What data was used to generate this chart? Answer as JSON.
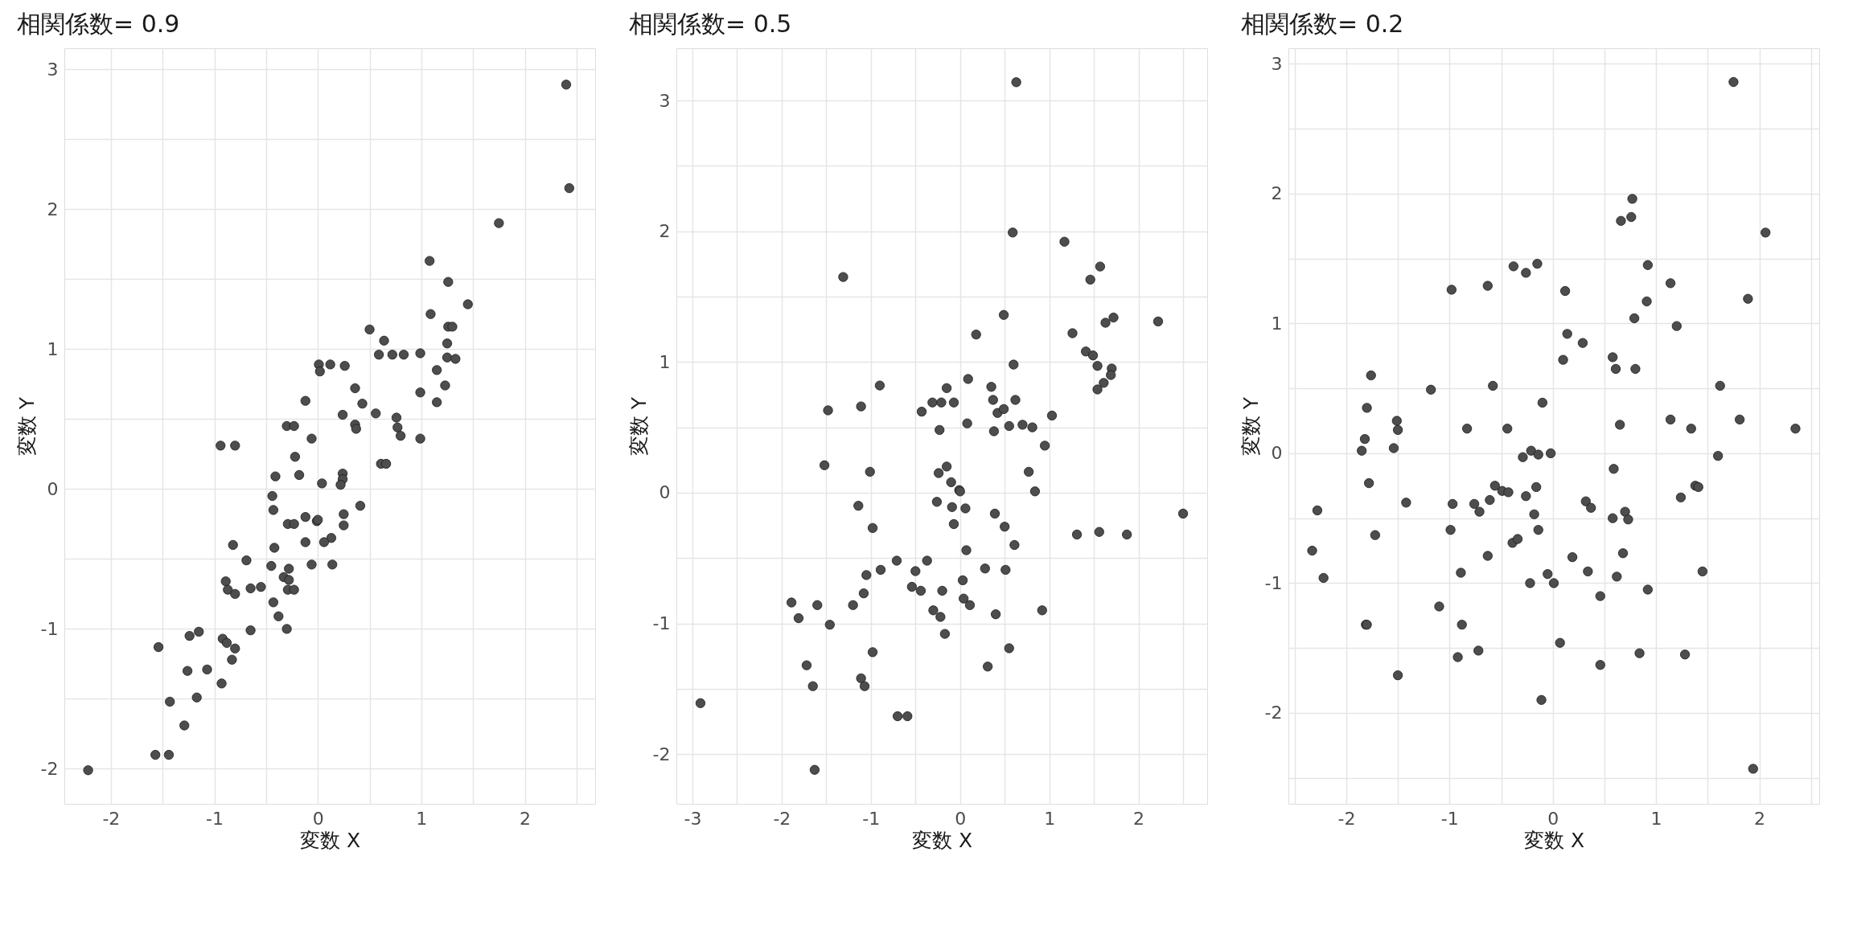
{
  "chart_data": [
    {
      "type": "scatter",
      "title": "相関係数= 0.9",
      "xlabel": "変数 X",
      "ylabel": "変数 Y",
      "color": "#4d4d4d",
      "marker": "circle",
      "grid": true,
      "xlim": [
        -2.45,
        2.68
      ],
      "ylim": [
        -2.25,
        3.15
      ],
      "xticks": [
        -2,
        {
          "value": -1.5,
          "label": null
        },
        -1,
        {
          "value": -0.5,
          "label": null
        },
        0,
        {
          "value": 0.5,
          "label": null
        },
        1,
        {
          "value": 1.5,
          "label": null
        },
        2,
        {
          "value": 2.5,
          "label": null
        }
      ],
      "yticks": [
        -2,
        {
          "value": -1.5,
          "label": null
        },
        -1,
        {
          "value": -0.5,
          "label": null
        },
        0,
        {
          "value": 0.5,
          "label": null
        },
        1,
        {
          "value": 1.5,
          "label": null
        },
        2,
        {
          "value": 2.5,
          "label": null
        },
        3
      ],
      "x": [
        2.4,
        2.43,
        1.75,
        1.08,
        1.26,
        1.45,
        1.09,
        1.26,
        1.3,
        0.5,
        0.64,
        1.25,
        0.59,
        0.72,
        0.83,
        0.99,
        1.25,
        1.33,
        0.01,
        0.12,
        0.26,
        0.02,
        1.15,
        0.36,
        1.23,
        0.99,
        -0.12,
        0.43,
        1.15,
        0.24,
        0.56,
        0.76,
        -0.3,
        -0.23,
        0.36,
        0.37,
        0.77,
        0.8,
        0.99,
        -0.06,
        -0.94,
        -0.8,
        -0.22,
        -0.41,
        -0.18,
        0.04,
        0.24,
        0.24,
        0.22,
        0.61,
        0.66,
        -0.44,
        0.41,
        -0.43,
        0.25,
        -0.12,
        -0.01,
        0.0,
        -0.29,
        -0.23,
        0.25,
        0.13,
        -0.12,
        0.06,
        -0.82,
        -0.42,
        -0.69,
        -0.45,
        -0.06,
        0.14,
        -0.28,
        -0.89,
        -0.33,
        -0.28,
        -0.87,
        -0.8,
        -0.65,
        -0.55,
        -0.29,
        -0.23,
        -0.43,
        -0.38,
        -0.65,
        -0.3,
        -1.24,
        -1.15,
        -1.54,
        -0.92,
        -0.88,
        -0.8,
        -0.83,
        -1.26,
        -1.07,
        -0.93,
        -1.43,
        -1.17,
        -1.29,
        -1.57,
        -1.44,
        -2.22
      ],
      "values": [
        2.89,
        2.15,
        1.9,
        1.63,
        1.48,
        1.32,
        1.25,
        1.16,
        1.16,
        1.14,
        1.06,
        1.04,
        0.96,
        0.96,
        0.96,
        0.97,
        0.94,
        0.93,
        0.89,
        0.89,
        0.88,
        0.84,
        0.85,
        0.72,
        0.74,
        0.69,
        0.63,
        0.61,
        0.62,
        0.53,
        0.54,
        0.51,
        0.45,
        0.45,
        0.46,
        0.43,
        0.44,
        0.38,
        0.36,
        0.36,
        0.31,
        0.31,
        0.23,
        0.09,
        0.1,
        0.04,
        0.11,
        0.07,
        0.03,
        0.18,
        0.18,
        -0.05,
        -0.12,
        -0.15,
        -0.18,
        -0.2,
        -0.23,
        -0.22,
        -0.25,
        -0.25,
        -0.26,
        -0.35,
        -0.38,
        -0.38,
        -0.4,
        -0.42,
        -0.51,
        -0.55,
        -0.54,
        -0.54,
        -0.57,
        -0.66,
        -0.63,
        -0.65,
        -0.72,
        -0.75,
        -0.71,
        -0.7,
        -0.72,
        -0.72,
        -0.81,
        -0.91,
        -1.01,
        -1.0,
        -1.05,
        -1.02,
        -1.13,
        -1.07,
        -1.1,
        -1.14,
        -1.22,
        -1.3,
        -1.29,
        -1.39,
        -1.52,
        -1.49,
        -1.69,
        -1.9,
        -1.9,
        -2.01
      ]
    },
    {
      "type": "scatter",
      "title": "相関係数= 0.5",
      "xlabel": "変数 X",
      "ylabel": "変数 Y",
      "color": "#4d4d4d",
      "marker": "circle",
      "grid": true,
      "xlim": [
        -3.18,
        2.77
      ],
      "ylim": [
        -2.38,
        3.4
      ],
      "xticks": [
        -3,
        {
          "value": -2.5,
          "label": null
        },
        -2,
        {
          "value": -1.5,
          "label": null
        },
        -1,
        {
          "value": -0.5,
          "label": null
        },
        0,
        {
          "value": 0.5,
          "label": null
        },
        1,
        {
          "value": 1.5,
          "label": null
        },
        2,
        {
          "value": 2.5,
          "label": null
        }
      ],
      "yticks": [
        -2,
        {
          "value": -1.5,
          "label": null
        },
        -1,
        {
          "value": -0.5,
          "label": null
        },
        0,
        {
          "value": 0.5,
          "label": null
        },
        1,
        {
          "value": 1.5,
          "label": null
        },
        2,
        {
          "value": 2.5,
          "label": null
        },
        3
      ],
      "x": [
        0.63,
        -1.31,
        0.59,
        1.17,
        1.57,
        1.46,
        0.49,
        1.72,
        1.63,
        2.22,
        0.18,
        1.26,
        1.41,
        1.49,
        0.6,
        1.54,
        1.7,
        1.69,
        1.61,
        1.54,
        0.09,
        -0.9,
        -0.15,
        0.35,
        -0.31,
        -0.21,
        -0.07,
        0.37,
        0.62,
        -1.48,
        -1.11,
        -0.43,
        0.42,
        0.49,
        1.03,
        0.08,
        -0.23,
        0.38,
        0.55,
        0.7,
        0.81,
        0.95,
        -1.52,
        -1.01,
        -0.15,
        -0.24,
        -0.1,
        -0.01,
        0.0,
        0.77,
        0.84,
        -1.14,
        -0.26,
        -0.09,
        0.06,
        0.39,
        2.5,
        -0.98,
        -0.07,
        0.5,
        1.31,
        1.56,
        1.87,
        0.61,
        0.07,
        -0.71,
        -0.37,
        -0.89,
        -0.5,
        -1.05,
        0.28,
        0.51,
        0.03,
        -0.54,
        -0.44,
        -0.2,
        -1.08,
        -1.89,
        -1.6,
        -1.2,
        0.04,
        0.11,
        -0.3,
        -0.22,
        0.4,
        0.92,
        -1.81,
        -1.46,
        -0.17,
        0.55,
        -0.98,
        0.31,
        -1.72,
        -1.11,
        -1.07,
        -1.65,
        -2.91,
        -0.7,
        -0.59,
        -1.63
      ],
      "values": [
        3.14,
        1.65,
        1.99,
        1.92,
        1.73,
        1.63,
        1.36,
        1.34,
        1.3,
        1.31,
        1.21,
        1.22,
        1.08,
        1.05,
        0.98,
        0.97,
        0.95,
        0.9,
        0.84,
        0.79,
        0.87,
        0.82,
        0.8,
        0.81,
        0.69,
        0.69,
        0.69,
        0.71,
        0.71,
        0.63,
        0.66,
        0.62,
        0.61,
        0.64,
        0.59,
        0.53,
        0.48,
        0.47,
        0.51,
        0.52,
        0.5,
        0.36,
        0.21,
        0.16,
        0.2,
        0.15,
        0.08,
        0.02,
        0.01,
        0.16,
        0.01,
        -0.1,
        -0.07,
        -0.11,
        -0.12,
        -0.16,
        -0.16,
        -0.27,
        -0.24,
        -0.26,
        -0.32,
        -0.3,
        -0.32,
        -0.4,
        -0.44,
        -0.52,
        -0.52,
        -0.59,
        -0.6,
        -0.63,
        -0.58,
        -0.59,
        -0.67,
        -0.72,
        -0.75,
        -0.75,
        -0.77,
        -0.84,
        -0.86,
        -0.86,
        -0.81,
        -0.86,
        -0.9,
        -0.95,
        -0.93,
        -0.9,
        -0.96,
        -1.01,
        -1.08,
        -1.19,
        -1.22,
        -1.33,
        -1.32,
        -1.42,
        -1.48,
        -1.48,
        -1.61,
        -1.71,
        -1.71,
        -2.12
      ]
    },
    {
      "type": "scatter",
      "title": "相関係数= 0.2",
      "xlabel": "変数 X",
      "ylabel": "変数 Y",
      "color": "#4d4d4d",
      "marker": "circle",
      "grid": true,
      "xlim": [
        -2.56,
        2.58
      ],
      "ylim": [
        -2.7,
        3.12
      ],
      "xticks": [
        {
          "value": -2.5,
          "label": null
        },
        -2,
        {
          "value": -1.5,
          "label": null
        },
        -1,
        {
          "value": -0.5,
          "label": null
        },
        0,
        {
          "value": 0.5,
          "label": null
        },
        1,
        {
          "value": 1.5,
          "label": null
        },
        2,
        {
          "value": 2.5,
          "label": null
        }
      ],
      "yticks": [
        {
          "value": -2.5,
          "label": null
        },
        -2,
        {
          "value": -1.5,
          "label": null
        },
        -1,
        {
          "value": -0.5,
          "label": null
        },
        0,
        {
          "value": 0.5,
          "label": null
        },
        1,
        {
          "value": 1.5,
          "label": null
        },
        2,
        {
          "value": 2.5,
          "label": null
        },
        3
      ],
      "x": [
        1.75,
        0.77,
        0.66,
        0.76,
        2.06,
        -0.38,
        -0.26,
        -0.15,
        0.92,
        -0.98,
        -0.63,
        0.12,
        1.14,
        0.91,
        1.89,
        0.79,
        1.2,
        0.14,
        0.29,
        0.1,
        0.58,
        0.61,
        0.8,
        -1.76,
        -1.18,
        -0.58,
        1.62,
        -0.1,
        -1.8,
        -1.51,
        -1.5,
        -0.83,
        -0.44,
        0.65,
        1.14,
        1.34,
        1.81,
        2.35,
        -1.82,
        -1.85,
        -1.54,
        -0.21,
        -0.29,
        -0.14,
        -0.02,
        1.6,
        0.59,
        -1.78,
        -0.56,
        -0.49,
        -0.43,
        -0.16,
        -0.26,
        1.38,
        1.41,
        1.24,
        -1.42,
        -2.28,
        -0.97,
        -0.76,
        -0.71,
        -0.61,
        -0.18,
        0.32,
        0.37,
        0.7,
        0.58,
        0.73,
        -1.72,
        -0.99,
        -0.14,
        -0.39,
        -0.34,
        -2.33,
        -0.63,
        0.19,
        0.68,
        -2.22,
        -0.89,
        -0.05,
        0.34,
        0.62,
        1.45,
        -0.22,
        0.01,
        0.46,
        0.92,
        -1.1,
        -1.81,
        -1.8,
        -0.88,
        0.07,
        -0.92,
        -0.72,
        0.84,
        1.28,
        0.46,
        -1.5,
        -0.11,
        1.94
      ],
      "values": [
        2.86,
        1.96,
        1.79,
        1.82,
        1.7,
        1.44,
        1.39,
        1.46,
        1.45,
        1.26,
        1.29,
        1.25,
        1.31,
        1.17,
        1.19,
        1.04,
        0.98,
        0.92,
        0.85,
        0.72,
        0.74,
        0.65,
        0.65,
        0.6,
        0.49,
        0.52,
        0.52,
        0.39,
        0.35,
        0.25,
        0.18,
        0.19,
        0.19,
        0.22,
        0.26,
        0.19,
        0.26,
        0.19,
        0.11,
        0.02,
        0.04,
        0.02,
        -0.03,
        -0.01,
        0.0,
        -0.02,
        -0.12,
        -0.23,
        -0.25,
        -0.29,
        -0.3,
        -0.26,
        -0.33,
        -0.25,
        -0.26,
        -0.34,
        -0.38,
        -0.44,
        -0.39,
        -0.39,
        -0.45,
        -0.36,
        -0.47,
        -0.37,
        -0.42,
        -0.45,
        -0.5,
        -0.51,
        -0.63,
        -0.59,
        -0.59,
        -0.69,
        -0.66,
        -0.75,
        -0.79,
        -0.8,
        -0.77,
        -0.96,
        -0.92,
        -0.93,
        -0.91,
        -0.95,
        -0.91,
        -1.0,
        -1.0,
        -1.1,
        -1.05,
        -1.18,
        -1.32,
        -1.32,
        -1.32,
        -1.46,
        -1.57,
        -1.52,
        -1.54,
        -1.55,
        -1.63,
        -1.71,
        -1.9,
        -2.43
      ]
    }
  ]
}
